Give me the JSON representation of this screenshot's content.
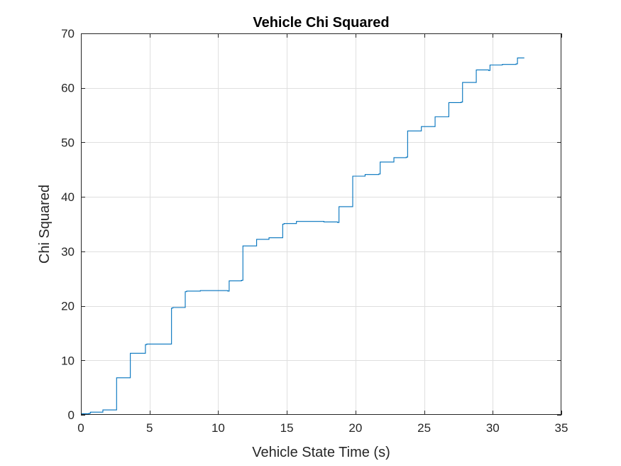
{
  "chart_data": {
    "type": "line",
    "title": "Vehicle Chi Squared",
    "xlabel": "Vehicle State Time (s)",
    "ylabel": "Chi Squared",
    "xlim": [
      0,
      35
    ],
    "ylim": [
      0,
      70
    ],
    "xticks": [
      0,
      5,
      10,
      15,
      20,
      25,
      30,
      35
    ],
    "yticks": [
      0,
      10,
      20,
      30,
      40,
      50,
      60,
      70
    ],
    "grid": true,
    "line_color": "#0072BD",
    "series": [
      {
        "step": "post",
        "x": [
          0,
          0.6,
          0.7,
          1.6,
          2.6,
          2.7,
          3.6,
          3.7,
          4.7,
          4.8,
          5.6,
          6.6,
          6.7,
          7.6,
          7.7,
          8.7,
          10.7,
          10.8,
          11.7,
          11.8,
          12.7,
          12.8,
          13.7,
          14.7,
          14.8,
          15.7,
          17.7,
          18.7,
          18.8,
          19.7,
          19.8,
          20.7,
          21.7,
          21.8,
          22.7,
          22.8,
          23.7,
          23.8,
          24.7,
          24.8,
          25.7,
          25.8,
          26.7,
          26.8,
          27.7,
          27.8,
          28.7,
          28.8,
          29.7,
          29.8,
          30.7,
          31.7,
          31.8,
          32.3
        ],
        "y": [
          0.2,
          0.3,
          0.5,
          0.9,
          6.8,
          6.8,
          11.3,
          11.3,
          12.9,
          13.0,
          13.0,
          19.6,
          19.7,
          22.6,
          22.7,
          22.8,
          22.7,
          24.6,
          24.7,
          31.0,
          31.0,
          32.2,
          32.5,
          35.0,
          35.1,
          35.5,
          35.4,
          35.3,
          38.2,
          38.2,
          43.8,
          44.1,
          44.2,
          46.4,
          46.4,
          47.2,
          47.3,
          52.1,
          52.1,
          52.9,
          52.9,
          54.7,
          54.7,
          57.3,
          57.4,
          61.0,
          61.0,
          63.3,
          63.2,
          64.2,
          64.3,
          64.4,
          65.5,
          65.5
        ]
      }
    ]
  }
}
